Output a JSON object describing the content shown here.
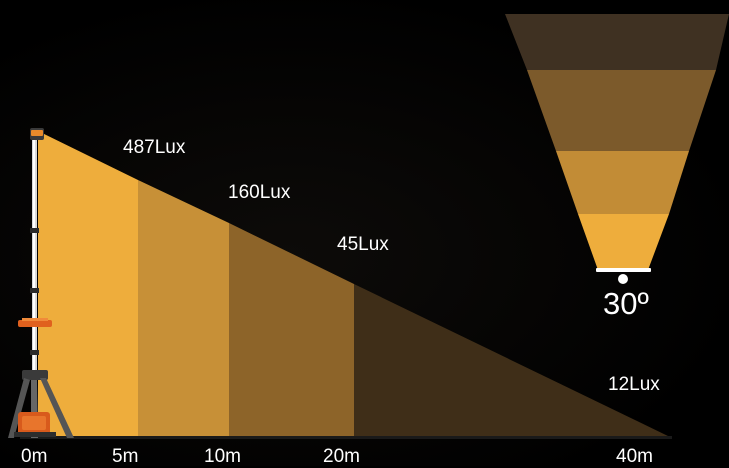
{
  "colors": {
    "background": "#000000",
    "zone_1": "#eead3c",
    "zone_2": "#c79037",
    "zone_3": "#8d6429",
    "zone_4": "#4a3519",
    "zone_5": "#21180d",
    "text": "#ffffff"
  },
  "side_view": {
    "lux_labels": [
      "487Lux",
      "160Lux",
      "45Lux",
      "12Lux"
    ],
    "distance_labels": [
      "0m",
      "5m",
      "10m",
      "20m",
      "40m"
    ]
  },
  "top_view": {
    "beam_angle": "30º"
  },
  "icons": {
    "light_tower": "tripod-light-tower-icon",
    "lamp": "lamp-icon"
  }
}
